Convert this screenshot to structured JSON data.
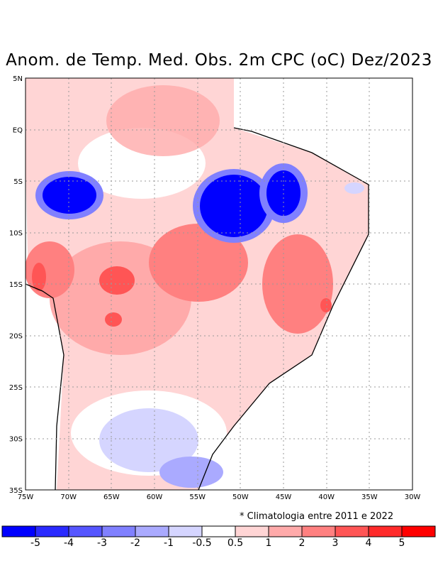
{
  "title": "Anom. de Temp. Med. Obs. 2m CPC (oC) Dez/2023",
  "lat_ticks": [
    "5N",
    "EQ",
    "5S",
    "10S",
    "15S",
    "20S",
    "25S",
    "30S",
    "35S"
  ],
  "lon_ticks": [
    "75W",
    "70W",
    "65W",
    "60W",
    "55W",
    "50W",
    "45W",
    "40W",
    "35W",
    "30W"
  ],
  "footnote": "* Climatologia entre 2011 e 2022",
  "colorbar": {
    "colors": [
      "#0000ff",
      "#2a2aff",
      "#5555ff",
      "#8080ff",
      "#aaaaff",
      "#d5d5ff",
      "#ffffff",
      "#ffd5d5",
      "#ffaaaa",
      "#ff8080",
      "#ff5555",
      "#ff2a2a",
      "#ff0000"
    ],
    "labels": [
      "-5",
      "-4",
      "-3",
      "-2",
      "-1",
      "-0.5",
      "0.5",
      "1",
      "2",
      "3",
      "4",
      "5"
    ]
  }
}
